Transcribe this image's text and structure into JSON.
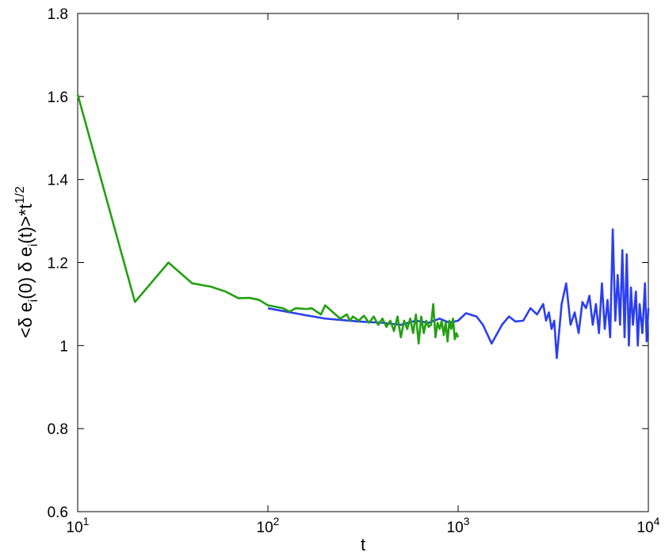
{
  "chart_data": {
    "type": "line",
    "xlabel": "t",
    "ylabel": [
      "<δ e",
      "i",
      "(0) δ e",
      "i",
      "(t)>*t",
      "1/2"
    ],
    "log_x": true,
    "grid": false,
    "xlim": [
      10,
      10000
    ],
    "ylim": [
      0.6,
      1.8
    ],
    "xticks": [
      {
        "value": 10,
        "label": "10",
        "exponent": "1"
      },
      {
        "value": 100,
        "label": "10",
        "exponent": "2"
      },
      {
        "value": 1000,
        "label": "10",
        "exponent": "3"
      },
      {
        "value": 10000,
        "label": "10",
        "exponent": "4"
      }
    ],
    "yticks": [
      0.6,
      0.8,
      1,
      1.2,
      1.4,
      1.6,
      1.8
    ],
    "series": [
      {
        "color": "#2b3ff0",
        "x": [
          100,
          150,
          200,
          300,
          400,
          500,
          600,
          700,
          800,
          900,
          1000,
          1100,
          1250,
          1350,
          1500,
          1700,
          1850,
          2000,
          2200,
          2400,
          2600,
          2800,
          2900,
          3000,
          3100,
          3200,
          3300,
          3500,
          3700,
          3900,
          4100,
          4300,
          4500,
          4700,
          4900,
          5100,
          5300,
          5500,
          5700,
          5900,
          6100,
          6300,
          6500,
          6700,
          6900,
          7100,
          7300,
          7500,
          7700,
          7900,
          8100,
          8300,
          8600,
          8800,
          9000,
          9300,
          9600,
          9800,
          10000
        ],
        "values": [
          1.09,
          1.075,
          1.065,
          1.058,
          1.055,
          1.05,
          1.06,
          1.055,
          1.065,
          1.055,
          1.06,
          1.078,
          1.07,
          1.05,
          1.005,
          1.05,
          1.07,
          1.058,
          1.06,
          1.09,
          1.075,
          1.1,
          1.06,
          1.08,
          1.04,
          1.06,
          0.97,
          1.1,
          1.15,
          1.05,
          1.08,
          1.03,
          1.105,
          1.09,
          1.12,
          1.05,
          1.1,
          1.03,
          1.15,
          1.04,
          1.11,
          1.02,
          1.28,
          1.06,
          1.17,
          1.05,
          1.23,
          1.02,
          1.22,
          1.0,
          1.14,
          1.05,
          1.13,
          1.0,
          1.1,
          1.03,
          1.15,
          1.01,
          1.09
        ]
      },
      {
        "color": "#22a010",
        "x": [
          10,
          20,
          30,
          40,
          50,
          60,
          70,
          80,
          90,
          100,
          120,
          130,
          140,
          160,
          170,
          180,
          190,
          200,
          220,
          240,
          260,
          270,
          280,
          300,
          320,
          340,
          360,
          380,
          400,
          420,
          440,
          460,
          480,
          500,
          520,
          540,
          560,
          580,
          600,
          620,
          640,
          660,
          680,
          700,
          720,
          740,
          760,
          780,
          800,
          820,
          840,
          860,
          880,
          900,
          920,
          940,
          960,
          980,
          1000
        ],
        "values": [
          1.605,
          1.105,
          1.2,
          1.15,
          1.142,
          1.13,
          1.114,
          1.115,
          1.11,
          1.097,
          1.09,
          1.082,
          1.09,
          1.088,
          1.09,
          1.082,
          1.075,
          1.097,
          1.08,
          1.065,
          1.075,
          1.06,
          1.07,
          1.06,
          1.072,
          1.055,
          1.07,
          1.05,
          1.065,
          1.045,
          1.06,
          1.035,
          1.07,
          1.02,
          1.06,
          1.04,
          1.065,
          1.03,
          1.075,
          1.005,
          1.07,
          1.03,
          1.06,
          1.045,
          1.05,
          1.1,
          1.02,
          1.055,
          1.04,
          1.06,
          1.025,
          1.055,
          1.01,
          1.06,
          1.04,
          1.065,
          1.015,
          1.03,
          1.02
        ]
      }
    ]
  }
}
